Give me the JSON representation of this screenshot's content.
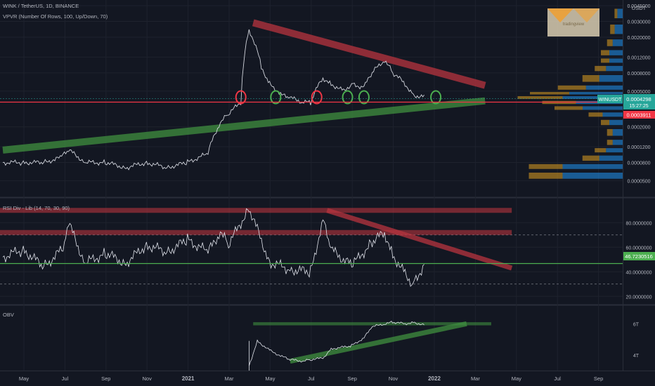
{
  "header": {
    "symbol_line": "WINK / TetherUS, 1D, BINANCE",
    "indicator_line": "VPVR (Number Of Rows, 100, Up/Down, 70)"
  },
  "watermark": {
    "text": "tradingview",
    "icon": "logo-watermark-icon"
  },
  "price_axis": {
    "currency": "USDT",
    "labels": [
      "0.0045000",
      "0.0030000",
      "0.0020000",
      "0.0012000",
      "0.0008000",
      "0.0005000",
      "0.0002000",
      "0.0001200",
      "0.0000800",
      "0.0000500"
    ],
    "symbol_tag": "WINUSDT",
    "last_price": "0.0004298",
    "countdown": "15:27:25",
    "level_price": "0.0003911",
    "colors": {
      "tag": "#26a69a",
      "level": "#f23645"
    }
  },
  "rsi": {
    "title": "RSI Div - Lib (14, 70, 30, 90)",
    "labels": [
      "80.0000000",
      "60.0000000",
      "40.0000000",
      "20.0000000"
    ],
    "value_tag": "46.7230516",
    "colors": {
      "tag": "#4caf50"
    }
  },
  "obv": {
    "title": "OBV",
    "labels": [
      "6T",
      "4T"
    ]
  },
  "time_axis": {
    "labels": [
      "May",
      "Jul",
      "Sep",
      "Nov",
      "2021",
      "Mar",
      "May",
      "Jul",
      "Sep",
      "Nov",
      "2022",
      "Mar",
      "May",
      "Jul",
      "Sep"
    ]
  },
  "chart_data": {
    "type": "line",
    "price_scale": "log",
    "x_unit": "month index from 2020-05",
    "price_line": {
      "x": [
        0,
        1,
        2,
        2.8,
        3.2,
        4,
        5,
        6,
        7,
        8,
        9,
        10,
        10.6,
        11,
        11.6,
        12,
        12.6,
        13,
        13.6,
        14,
        14.6,
        15,
        15.6,
        16,
        16.6,
        17,
        17.6,
        18,
        18.6,
        19,
        19.6,
        20,
        20.6
      ],
      "y": [
        8e-05,
        8e-05,
        8e-05,
        9e-05,
        0.00011,
        8e-05,
        8e-05,
        7e-05,
        8e-05,
        7e-05,
        8e-05,
        0.0001,
        0.00022,
        0.00028,
        0.00037,
        0.0024,
        0.0009,
        0.0006,
        0.00045,
        0.00042,
        0.00038,
        0.00037,
        0.0007,
        0.0006,
        0.0005,
        0.0006,
        0.00055,
        0.0008,
        0.0011,
        0.0008,
        0.0006,
        0.00045,
        0.00043
      ]
    },
    "rsi_line": {
      "x": [
        0,
        1,
        2,
        3,
        3.2,
        4,
        5,
        6,
        7,
        8,
        9,
        10,
        10.6,
        11,
        12,
        13,
        14,
        15,
        15.6,
        16,
        17,
        18,
        18.6,
        19,
        19.6,
        20,
        20.6
      ],
      "y": [
        52,
        58,
        44,
        60,
        80,
        47,
        55,
        47,
        62,
        56,
        66,
        56,
        72,
        62,
        92,
        48,
        42,
        40,
        82,
        58,
        45,
        64,
        72,
        54,
        38,
        30,
        48
      ]
    },
    "obv_line": {
      "x": [
        12,
        12.4,
        13,
        13.6,
        14,
        14.6,
        15,
        15.6,
        16,
        16.6,
        17,
        17.6,
        18,
        18.6,
        19,
        19.6,
        20,
        20.6
      ],
      "y": [
        3.3,
        4.9,
        4.3,
        3.9,
        3.7,
        3.6,
        3.7,
        3.8,
        4.4,
        4.5,
        4.6,
        5.1,
        5.8,
        6.0,
        6.1,
        6.0,
        6.1,
        5.9
      ]
    },
    "trendlines": [
      {
        "pane": "price",
        "color": "#b7343e",
        "from": [
          12.2,
          0.0029
        ],
        "to": [
          23.5,
          0.00058
        ],
        "label": ""
      },
      {
        "pane": "price",
        "color": "#3f8f3f",
        "from": [
          0,
          0.00011
        ],
        "to": [
          23.5,
          0.00039
        ]
      },
      {
        "pane": "rsi",
        "color": "#b7343e",
        "from": [
          15.8,
          90
        ],
        "to": [
          24.8,
          43
        ]
      },
      {
        "pane": "obv",
        "color": "#3f8f3f",
        "from": [
          14,
          3.6
        ],
        "to": [
          22.6,
          6.0
        ]
      }
    ],
    "horizontal_levels": [
      {
        "pane": "price",
        "value": 0.0003911,
        "color": "#f23645"
      },
      {
        "pane": "price",
        "value": 0.0004298,
        "color": "#26a69a"
      },
      {
        "pane": "rsi",
        "value": 46.72,
        "color": "#4caf50"
      }
    ],
    "zones": [
      {
        "pane": "rsi",
        "from_value": 70,
        "to_value": 74,
        "color": "#b7343e"
      },
      {
        "pane": "rsi",
        "from_value": 88,
        "to_value": 92,
        "color": "#b7343e"
      },
      {
        "pane": "obv",
        "from_value": 5.9,
        "to_value": 6.1,
        "color": "#3f8f3f"
      }
    ],
    "circles": [
      {
        "x": 11.6,
        "y": 0.00042,
        "color": "#f23645"
      },
      {
        "x": 13.3,
        "y": 0.00042,
        "color": "#4caf50"
      },
      {
        "x": 15.3,
        "y": 0.00042,
        "color": "#f23645"
      },
      {
        "x": 16.8,
        "y": 0.00042,
        "color": "#4caf50"
      },
      {
        "x": 17.6,
        "y": 0.00042,
        "color": "#4caf50"
      },
      {
        "x": 21.1,
        "y": 0.00042,
        "color": "#4caf50"
      }
    ],
    "volume_profile": {
      "price_levels": [
        5e-05,
        6.5e-05,
        8e-05,
        0.0001,
        0.00012,
        0.00015,
        0.0002,
        0.00025,
        0.0003,
        0.00035,
        0.0004,
        0.00045,
        0.0005,
        0.0006,
        0.0008,
        0.001,
        0.0012,
        0.0015,
        0.002,
        0.003,
        0.0045
      ],
      "up": [
        0.9,
        0.9,
        0.35,
        0.25,
        0.15,
        0.15,
        0.2,
        0.3,
        0.6,
        0.7,
        0.9,
        0.8,
        0.55,
        0.35,
        0.25,
        0.2,
        0.2,
        0.15,
        0.12,
        0.08,
        0.02
      ],
      "down": [
        0.6,
        0.6,
        0.3,
        0.2,
        0.1,
        0.1,
        0.15,
        0.25,
        0.5,
        0.6,
        0.8,
        0.7,
        0.5,
        0.3,
        0.2,
        0.15,
        0.15,
        0.1,
        0.08,
        0.05,
        0.02
      ]
    }
  }
}
